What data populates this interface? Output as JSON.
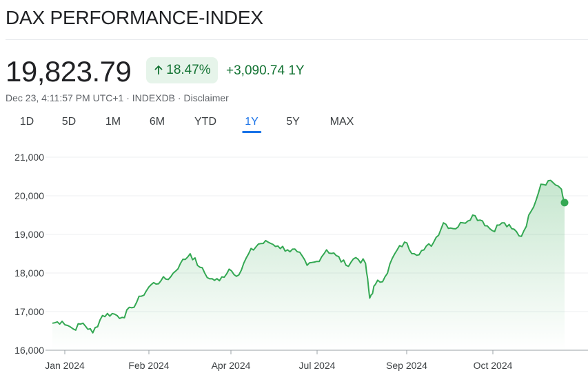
{
  "header": {
    "title": "DAX PERFORMANCE-INDEX",
    "price": "19,823.79",
    "change_percent": "18.47%",
    "change_abs": "+3,090.74",
    "change_period": "1Y",
    "trend": "up"
  },
  "meta": {
    "timestamp": "Dec 23, 4:11:57 PM UTC+1",
    "source": "INDEXDB",
    "disclaimer": "Disclaimer"
  },
  "ranges": [
    {
      "label": "1D",
      "active": false
    },
    {
      "label": "5D",
      "active": false
    },
    {
      "label": "1M",
      "active": false
    },
    {
      "label": "6M",
      "active": false
    },
    {
      "label": "YTD",
      "active": false
    },
    {
      "label": "1Y",
      "active": true
    },
    {
      "label": "5Y",
      "active": false
    },
    {
      "label": "MAX",
      "active": false
    }
  ],
  "colors": {
    "up": "#137333",
    "line": "#34a853",
    "accent": "#1a73e8"
  },
  "chart_data": {
    "type": "area",
    "y_ticks": [
      "21,000",
      "20,000",
      "19,000",
      "18,000",
      "17,000",
      "16,000"
    ],
    "ylim": [
      16000,
      21000
    ],
    "x_ticks": [
      "Jan 2024",
      "Feb 2024",
      "Apr 2024",
      "Jul 2024",
      "Sep 2024",
      "Oct 2024"
    ],
    "xlim": [
      "2023-12-21",
      "2024-12-23"
    ],
    "grid": "horizontal",
    "x": [
      "2023-12-21",
      "2023-12-28",
      "2024-01-05",
      "2024-01-12",
      "2024-01-19",
      "2024-01-26",
      "2024-02-02",
      "2024-02-09",
      "2024-02-16",
      "2024-02-23",
      "2024-03-01",
      "2024-03-08",
      "2024-03-15",
      "2024-03-22",
      "2024-03-29",
      "2024-04-05",
      "2024-04-12",
      "2024-04-19",
      "2024-04-26",
      "2024-05-03",
      "2024-05-10",
      "2024-05-17",
      "2024-05-24",
      "2024-05-31",
      "2024-06-07",
      "2024-06-14",
      "2024-06-21",
      "2024-06-28",
      "2024-07-05",
      "2024-07-12",
      "2024-07-19",
      "2024-07-26",
      "2024-08-02",
      "2024-08-05",
      "2024-08-09",
      "2024-08-16",
      "2024-08-23",
      "2024-08-30",
      "2024-09-06",
      "2024-09-13",
      "2024-09-20",
      "2024-09-27",
      "2024-10-04",
      "2024-10-11",
      "2024-10-18",
      "2024-10-25",
      "2024-11-01",
      "2024-11-08",
      "2024-11-15",
      "2024-11-22",
      "2024-11-29",
      "2024-12-06",
      "2024-12-13",
      "2024-12-20",
      "2024-12-23"
    ],
    "series": [
      {
        "values": [
          16700,
          16750,
          16550,
          16700,
          16450,
          16900,
          16950,
          16850,
          17100,
          17400,
          17700,
          17800,
          17900,
          18250,
          18500,
          18150,
          17850,
          17800,
          18100,
          17950,
          18500,
          18750,
          18800,
          18700,
          18600,
          18550,
          18200,
          18300,
          18600,
          18450,
          18200,
          18400,
          18250,
          17350,
          17700,
          17900,
          18500,
          18800,
          18500,
          18600,
          18800,
          19300,
          19150,
          19300,
          19500,
          19350,
          19100,
          19300,
          19150,
          18950,
          19600,
          20300,
          20400,
          20200,
          19824
        ]
      }
    ]
  }
}
